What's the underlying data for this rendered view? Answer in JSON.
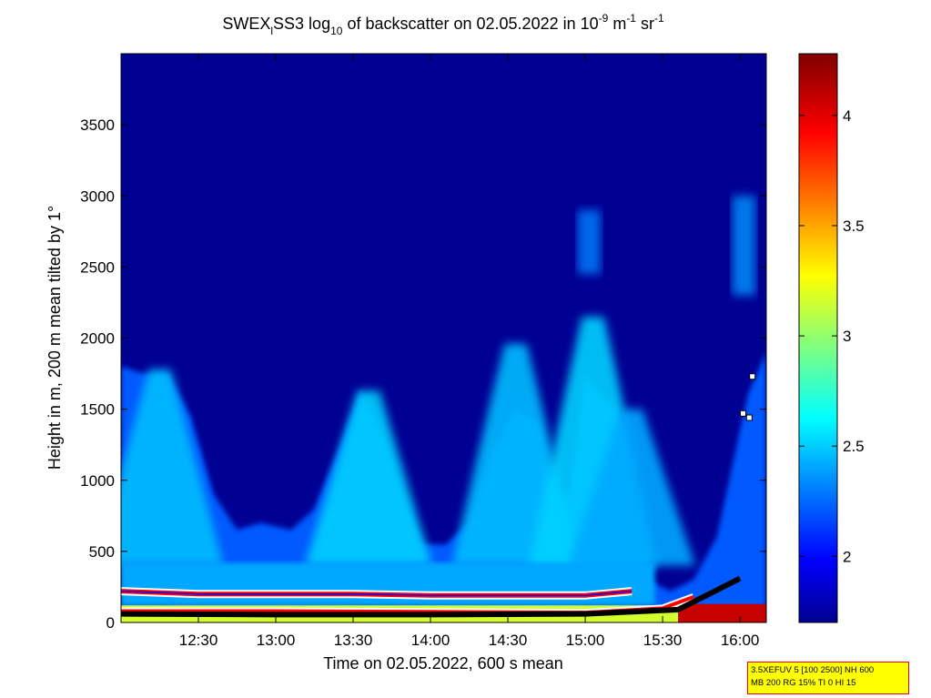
{
  "title": {
    "prefix": "SWEX",
    "sub1": "l",
    "mid": "SS3 log",
    "sub2": "10",
    "suffix": " of backscatter on 02.05.2022 in 10",
    "sup1": "-9",
    "unit1": " m",
    "sup2": "-1",
    "unit2": " sr",
    "sup3": "-1"
  },
  "info_box": {
    "line1": "3.5XEFUV 5 [100 2500] NH 600",
    "line2": "MB 200 RG 15% TI 0 HI 15"
  },
  "chart_data": {
    "type": "heatmap",
    "xlabel": "Time on 02.05.2022, 600 s mean",
    "ylabel": "Height in m, 200 m mean tilted by 1°",
    "x_unit": "hours",
    "xlim": [
      12.0,
      16.17
    ],
    "ylim": [
      0,
      4000
    ],
    "x_ticks": [
      {
        "value": 12.5,
        "label": "12:30"
      },
      {
        "value": 13.0,
        "label": "13:00"
      },
      {
        "value": 13.5,
        "label": "13:30"
      },
      {
        "value": 14.0,
        "label": "14:00"
      },
      {
        "value": 14.5,
        "label": "14:30"
      },
      {
        "value": 15.0,
        "label": "15:00"
      },
      {
        "value": 15.5,
        "label": "15:30"
      },
      {
        "value": 16.0,
        "label": "16:00"
      }
    ],
    "y_ticks": [
      {
        "value": 0,
        "label": "0"
      },
      {
        "value": 500,
        "label": "500"
      },
      {
        "value": 1000,
        "label": "1000"
      },
      {
        "value": 1500,
        "label": "1500"
      },
      {
        "value": 2000,
        "label": "2000"
      },
      {
        "value": 2500,
        "label": "2500"
      },
      {
        "value": 3000,
        "label": "3000"
      },
      {
        "value": 3500,
        "label": "3500"
      }
    ],
    "colorbar": {
      "colormap": "jet",
      "range": [
        1.7,
        4.28
      ],
      "ticks": [
        {
          "value": 2.0,
          "label": "2"
        },
        {
          "value": 2.5,
          "label": "2.5"
        },
        {
          "value": 3.0,
          "label": "3"
        },
        {
          "value": 3.5,
          "label": "3.5"
        },
        {
          "value": 4.0,
          "label": "4"
        }
      ]
    },
    "background_value": 1.75,
    "boundary_layer_top": [
      {
        "t": 12.0,
        "h": 1800
      },
      {
        "t": 12.15,
        "h": 1750
      },
      {
        "t": 12.3,
        "h": 1750
      },
      {
        "t": 12.45,
        "h": 1450
      },
      {
        "t": 12.6,
        "h": 900
      },
      {
        "t": 12.75,
        "h": 650
      },
      {
        "t": 12.9,
        "h": 700
      },
      {
        "t": 13.1,
        "h": 650
      },
      {
        "t": 13.25,
        "h": 800
      },
      {
        "t": 13.4,
        "h": 1200
      },
      {
        "t": 13.55,
        "h": 1630
      },
      {
        "t": 13.7,
        "h": 1300
      },
      {
        "t": 13.85,
        "h": 800
      },
      {
        "t": 13.95,
        "h": 550
      },
      {
        "t": 14.1,
        "h": 550
      },
      {
        "t": 14.25,
        "h": 700
      },
      {
        "t": 14.4,
        "h": 1200
      },
      {
        "t": 14.55,
        "h": 1500
      },
      {
        "t": 14.7,
        "h": 1400
      },
      {
        "t": 14.8,
        "h": 900
      },
      {
        "t": 14.9,
        "h": 900
      },
      {
        "t": 15.0,
        "h": 1750
      },
      {
        "t": 15.1,
        "h": 1600
      },
      {
        "t": 15.2,
        "h": 1500
      },
      {
        "t": 15.3,
        "h": 800
      },
      {
        "t": 15.4,
        "h": 300
      },
      {
        "t": 15.55,
        "h": 220
      },
      {
        "t": 15.7,
        "h": 300
      },
      {
        "t": 15.85,
        "h": 600
      },
      {
        "t": 15.95,
        "h": 1100
      },
      {
        "t": 16.05,
        "h": 1600
      },
      {
        "t": 16.17,
        "h": 1900
      }
    ],
    "plumes": [
      {
        "t": 12.25,
        "top": 1780,
        "strength": 2.5
      },
      {
        "t": 13.6,
        "top": 1630,
        "strength": 2.55
      },
      {
        "t": 14.55,
        "top": 1960,
        "strength": 2.5
      },
      {
        "t": 15.05,
        "top": 2150,
        "strength": 2.55
      },
      {
        "t": 15.3,
        "top": 1500,
        "strength": 2.45
      }
    ],
    "elevated_layers": [
      {
        "t_start": 14.95,
        "t_end": 15.1,
        "h_start": 2450,
        "h_end": 2900,
        "value": 2.35
      },
      {
        "t_start": 15.95,
        "t_end": 16.1,
        "h_start": 2300,
        "h_end": 3000,
        "value": 2.4
      }
    ],
    "layer_red_line": [
      {
        "t": 12.0,
        "h": 220
      },
      {
        "t": 12.5,
        "h": 200
      },
      {
        "t": 13.0,
        "h": 200
      },
      {
        "t": 13.5,
        "h": 200
      },
      {
        "t": 14.0,
        "h": 190
      },
      {
        "t": 14.5,
        "h": 190
      },
      {
        "t": 15.0,
        "h": 190
      },
      {
        "t": 15.3,
        "h": 220
      }
    ],
    "near_ground_red_line": [
      {
        "t": 12.0,
        "h": 80
      },
      {
        "t": 13.0,
        "h": 80
      },
      {
        "t": 14.0,
        "h": 75
      },
      {
        "t": 15.0,
        "h": 70
      },
      {
        "t": 15.5,
        "h": 100
      },
      {
        "t": 15.7,
        "h": 180
      }
    ],
    "ground_marker_series": [
      {
        "t": 12.0,
        "h": 60
      },
      {
        "t": 13.0,
        "h": 55
      },
      {
        "t": 14.0,
        "h": 55
      },
      {
        "t": 15.0,
        "h": 60
      },
      {
        "t": 15.6,
        "h": 90
      },
      {
        "t": 15.8,
        "h": 200
      },
      {
        "t": 16.0,
        "h": 310
      }
    ],
    "upper_markers": [
      {
        "t": 16.08,
        "h": 1730
      },
      {
        "t": 16.02,
        "h": 1470
      },
      {
        "t": 16.06,
        "h": 1440
      }
    ]
  }
}
